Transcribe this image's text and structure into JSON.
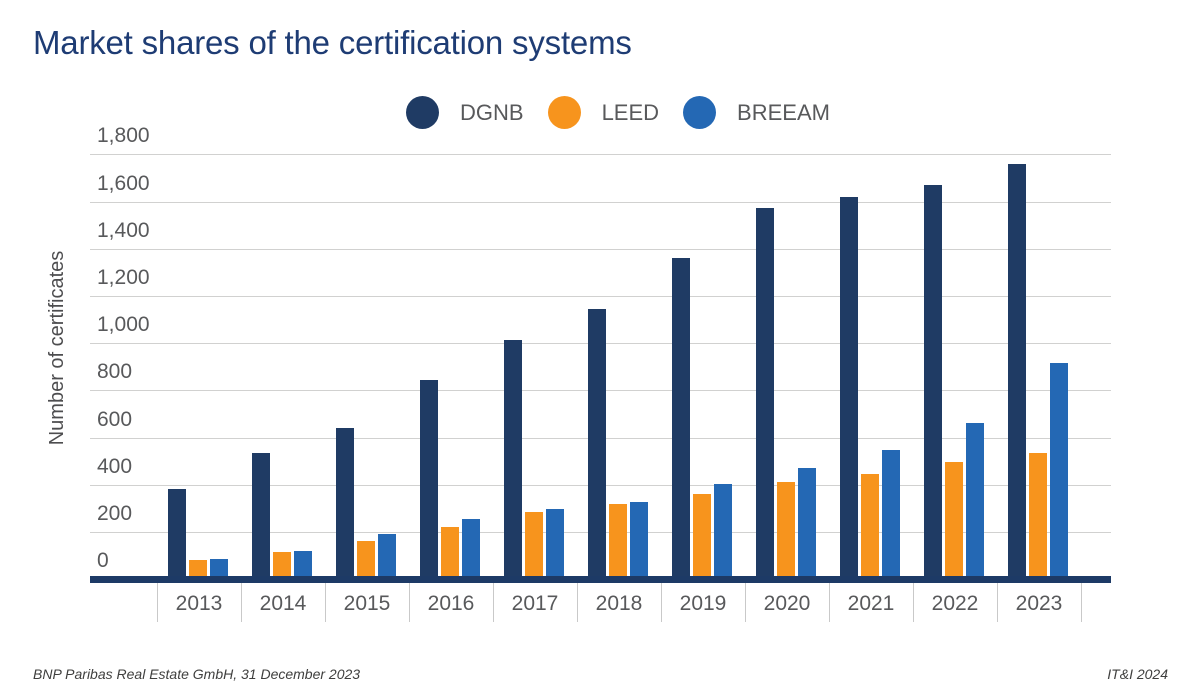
{
  "page": {
    "title": "Market shares of the certification systems",
    "footer_left": "BNP Paribas Real Estate GmbH, 31 December 2023",
    "footer_right": "IT&I 2024"
  },
  "colors": {
    "title_navy": "#1e3c74",
    "axis_line_navy": "#1d3a66",
    "gridline_gray": "#d1d1d0",
    "label_gray": "#58595b",
    "footer_gray": "#3f3f3e",
    "dgnb_navy": "#1f3b64",
    "leed_orange": "#f7941d",
    "breeam_blue": "#2468b4"
  },
  "chart_data": {
    "type": "bar",
    "title": "Market shares of the certification systems",
    "xlabel": "",
    "ylabel": "Number of certificates",
    "ylim": [
      0,
      1800
    ],
    "grid": "horizontal",
    "legend_position": "top-center",
    "yticks": [
      {
        "value": 1800,
        "label": "1,800"
      },
      {
        "value": 1600,
        "label": "1,600"
      },
      {
        "value": 1400,
        "label": "1,400"
      },
      {
        "value": 1200,
        "label": "1,200"
      },
      {
        "value": 1000,
        "label": "1,000"
      },
      {
        "value": 800,
        "label": "800"
      },
      {
        "value": 600,
        "label": "600"
      },
      {
        "value": 400,
        "label": "400"
      },
      {
        "value": 200,
        "label": "200"
      },
      {
        "value": 0,
        "label": "0"
      }
    ],
    "categories": [
      "2013",
      "2014",
      "2015",
      "2016",
      "2017",
      "2018",
      "2019",
      "2020",
      "2021",
      "2022",
      "2023"
    ],
    "series": [
      {
        "name": "DGNB",
        "color": "#1f3b64",
        "values": [
          380,
          535,
          640,
          845,
          1015,
          1145,
          1360,
          1575,
          1620,
          1670,
          1760
        ]
      },
      {
        "name": "LEED",
        "color": "#f7941d",
        "values": [
          80,
          115,
          160,
          220,
          285,
          320,
          360,
          410,
          445,
          495,
          535
        ]
      },
      {
        "name": "BREEAM",
        "color": "#2468b4",
        "values": [
          85,
          120,
          190,
          255,
          295,
          325,
          405,
          470,
          545,
          660,
          915
        ]
      }
    ]
  }
}
